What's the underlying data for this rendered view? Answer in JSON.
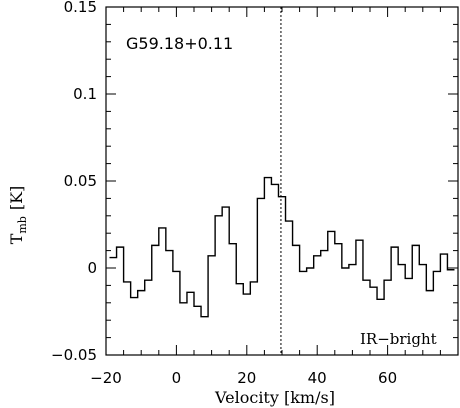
{
  "chart_data": {
    "type": "line",
    "step": true,
    "title": "",
    "xlabel": "Velocity [km/s]",
    "ylabel_main": "T",
    "ylabel_sub": "mb",
    "ylabel_unit": "[K]",
    "xlim": [
      -20,
      80
    ],
    "ylim": [
      -0.05,
      0.15
    ],
    "x_ticks": [
      -20,
      0,
      20,
      40,
      60
    ],
    "x_tick_labels": [
      "−20",
      "0",
      "20",
      "40",
      "60"
    ],
    "y_ticks": [
      -0.05,
      0,
      0.05,
      0.1,
      0.15
    ],
    "y_tick_labels": [
      "−0.05",
      "0",
      "0.05",
      "0.1",
      "0.15"
    ],
    "vline_x": 29.7,
    "annotations": {
      "source": "G59.18+0.11",
      "class": "IR−bright"
    },
    "grid": false,
    "series": [
      {
        "x": [
          -18,
          -16,
          -14,
          -12,
          -10,
          -8,
          -6,
          -4,
          -2,
          0,
          2,
          4,
          6,
          8,
          10,
          12,
          14,
          16,
          18,
          20,
          22,
          24,
          26,
          28,
          30,
          32,
          34,
          36,
          38,
          40,
          42,
          44,
          46,
          48,
          50,
          52,
          54,
          56,
          58,
          60,
          62,
          64,
          66,
          68,
          70,
          72,
          74,
          76,
          78
        ],
        "y": [
          0.006,
          0.012,
          -0.008,
          -0.017,
          -0.013,
          -0.007,
          0.013,
          0.023,
          0.01,
          -0.002,
          -0.02,
          -0.014,
          -0.022,
          -0.028,
          0.007,
          0.03,
          0.035,
          0.014,
          -0.009,
          -0.015,
          -0.008,
          0.04,
          0.052,
          0.048,
          0.041,
          0.027,
          0.013,
          -0.002,
          0.0,
          0.007,
          0.01,
          0.021,
          0.014,
          0.0,
          0.002,
          0.016,
          -0.007,
          -0.011,
          -0.018,
          -0.007,
          0.012,
          0.002,
          -0.006,
          0.013,
          0.002,
          -0.013,
          -0.002,
          0.008,
          -0.001
        ]
      }
    ]
  }
}
